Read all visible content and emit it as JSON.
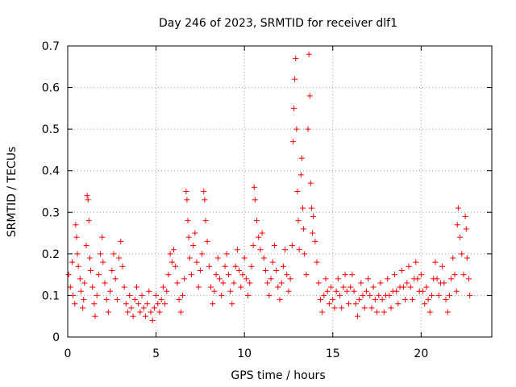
{
  "chart_data": {
    "type": "scatter",
    "title": "Day 246 of 2023, SRMTID for receiver dlf1",
    "xlabel": "GPS time / hours",
    "ylabel": "SRMTID / TECUs",
    "xlim": [
      0,
      24
    ],
    "ylim": [
      0,
      0.7
    ],
    "xticks": [
      0,
      5,
      10,
      15,
      20
    ],
    "xtick_labels": [
      "0",
      "5",
      "10",
      "15",
      "20"
    ],
    "yticks": [
      0,
      0.1,
      0.2,
      0.3,
      0.4,
      0.5,
      0.6,
      0.7
    ],
    "ytick_labels": [
      "0",
      "0.1",
      "0.2",
      "0.3",
      "0.4",
      "0.5",
      "0.6",
      "0.7"
    ],
    "grid": true,
    "marker": "+",
    "color": "#ff0000",
    "series": [
      {
        "name": "SRMTID",
        "points": [
          [
            0.05,
            0.15
          ],
          [
            0.15,
            0.12
          ],
          [
            0.25,
            0.18
          ],
          [
            0.3,
            0.1
          ],
          [
            0.4,
            0.08
          ],
          [
            0.45,
            0.27
          ],
          [
            0.5,
            0.24
          ],
          [
            0.55,
            0.2
          ],
          [
            0.6,
            0.17
          ],
          [
            0.7,
            0.14
          ],
          [
            0.75,
            0.11
          ],
          [
            0.85,
            0.07
          ],
          [
            0.9,
            0.09
          ],
          [
            0.95,
            0.13
          ],
          [
            1.05,
            0.22
          ],
          [
            1.1,
            0.34
          ],
          [
            1.15,
            0.33
          ],
          [
            1.2,
            0.28
          ],
          [
            1.25,
            0.19
          ],
          [
            1.3,
            0.16
          ],
          [
            1.4,
            0.12
          ],
          [
            1.5,
            0.08
          ],
          [
            1.55,
            0.05
          ],
          [
            1.65,
            0.1
          ],
          [
            1.75,
            0.15
          ],
          [
            1.85,
            0.2
          ],
          [
            1.95,
            0.24
          ],
          [
            2.0,
            0.18
          ],
          [
            2.1,
            0.13
          ],
          [
            2.2,
            0.09
          ],
          [
            2.3,
            0.06
          ],
          [
            2.4,
            0.11
          ],
          [
            2.5,
            0.16
          ],
          [
            2.6,
            0.2
          ],
          [
            2.7,
            0.14
          ],
          [
            2.8,
            0.09
          ],
          [
            2.9,
            0.19
          ],
          [
            3.0,
            0.23
          ],
          [
            3.1,
            0.17
          ],
          [
            3.2,
            0.12
          ],
          [
            3.3,
            0.08
          ],
          [
            3.4,
            0.06
          ],
          [
            3.5,
            0.1
          ],
          [
            3.6,
            0.07
          ],
          [
            3.7,
            0.05
          ],
          [
            3.8,
            0.09
          ],
          [
            3.9,
            0.12
          ],
          [
            4.0,
            0.08
          ],
          [
            4.1,
            0.06
          ],
          [
            4.2,
            0.1
          ],
          [
            4.3,
            0.07
          ],
          [
            4.4,
            0.05
          ],
          [
            4.5,
            0.08
          ],
          [
            4.6,
            0.11
          ],
          [
            4.7,
            0.06
          ],
          [
            4.8,
            0.04
          ],
          [
            4.9,
            0.07
          ],
          [
            5.0,
            0.1
          ],
          [
            5.1,
            0.08
          ],
          [
            5.2,
            0.06
          ],
          [
            5.3,
            0.09
          ],
          [
            5.4,
            0.12
          ],
          [
            5.5,
            0.08
          ],
          [
            5.6,
            0.11
          ],
          [
            5.7,
            0.15
          ],
          [
            5.8,
            0.2
          ],
          [
            5.9,
            0.18
          ],
          [
            6.0,
            0.21
          ],
          [
            6.1,
            0.17
          ],
          [
            6.2,
            0.13
          ],
          [
            6.3,
            0.09
          ],
          [
            6.4,
            0.06
          ],
          [
            6.5,
            0.1
          ],
          [
            6.6,
            0.14
          ],
          [
            6.7,
            0.35
          ],
          [
            6.75,
            0.33
          ],
          [
            6.8,
            0.28
          ],
          [
            6.85,
            0.24
          ],
          [
            6.9,
            0.19
          ],
          [
            7.0,
            0.15
          ],
          [
            7.1,
            0.22
          ],
          [
            7.2,
            0.25
          ],
          [
            7.3,
            0.18
          ],
          [
            7.4,
            0.12
          ],
          [
            7.5,
            0.16
          ],
          [
            7.6,
            0.2
          ],
          [
            7.7,
            0.35
          ],
          [
            7.75,
            0.33
          ],
          [
            7.8,
            0.28
          ],
          [
            7.9,
            0.23
          ],
          [
            8.0,
            0.17
          ],
          [
            8.1,
            0.12
          ],
          [
            8.2,
            0.08
          ],
          [
            8.3,
            0.11
          ],
          [
            8.4,
            0.15
          ],
          [
            8.5,
            0.19
          ],
          [
            8.6,
            0.14
          ],
          [
            8.7,
            0.1
          ],
          [
            8.8,
            0.13
          ],
          [
            8.9,
            0.17
          ],
          [
            9.0,
            0.2
          ],
          [
            9.1,
            0.15
          ],
          [
            9.2,
            0.11
          ],
          [
            9.3,
            0.08
          ],
          [
            9.4,
            0.13
          ],
          [
            9.5,
            0.17
          ],
          [
            9.6,
            0.21
          ],
          [
            9.7,
            0.16
          ],
          [
            9.8,
            0.12
          ],
          [
            9.9,
            0.15
          ],
          [
            10.0,
            0.19
          ],
          [
            10.1,
            0.14
          ],
          [
            10.2,
            0.1
          ],
          [
            10.3,
            0.13
          ],
          [
            10.4,
            0.17
          ],
          [
            10.5,
            0.22
          ],
          [
            10.55,
            0.36
          ],
          [
            10.6,
            0.33
          ],
          [
            10.7,
            0.28
          ],
          [
            10.8,
            0.24
          ],
          [
            10.9,
            0.21
          ],
          [
            11.0,
            0.25
          ],
          [
            11.1,
            0.19
          ],
          [
            11.2,
            0.16
          ],
          [
            11.3,
            0.13
          ],
          [
            11.4,
            0.1
          ],
          [
            11.5,
            0.14
          ],
          [
            11.6,
            0.18
          ],
          [
            11.7,
            0.22
          ],
          [
            11.8,
            0.16
          ],
          [
            11.9,
            0.12
          ],
          [
            12.0,
            0.09
          ],
          [
            12.1,
            0.13
          ],
          [
            12.2,
            0.17
          ],
          [
            12.3,
            0.21
          ],
          [
            12.4,
            0.15
          ],
          [
            12.5,
            0.11
          ],
          [
            12.6,
            0.14
          ],
          [
            12.7,
            0.22
          ],
          [
            12.75,
            0.47
          ],
          [
            12.8,
            0.55
          ],
          [
            12.85,
            0.62
          ],
          [
            12.9,
            0.67
          ],
          [
            12.95,
            0.5
          ],
          [
            13.0,
            0.35
          ],
          [
            13.05,
            0.28
          ],
          [
            13.1,
            0.21
          ],
          [
            13.2,
            0.39
          ],
          [
            13.25,
            0.43
          ],
          [
            13.3,
            0.31
          ],
          [
            13.35,
            0.26
          ],
          [
            13.4,
            0.2
          ],
          [
            13.5,
            0.15
          ],
          [
            13.6,
            0.5
          ],
          [
            13.65,
            0.68
          ],
          [
            13.7,
            0.58
          ],
          [
            13.75,
            0.37
          ],
          [
            13.8,
            0.31
          ],
          [
            13.85,
            0.25
          ],
          [
            13.9,
            0.29
          ],
          [
            14.0,
            0.23
          ],
          [
            14.1,
            0.18
          ],
          [
            14.2,
            0.13
          ],
          [
            14.3,
            0.09
          ],
          [
            14.4,
            0.06
          ],
          [
            14.5,
            0.1
          ],
          [
            14.6,
            0.14
          ],
          [
            14.7,
            0.11
          ],
          [
            14.8,
            0.08
          ],
          [
            14.9,
            0.12
          ],
          [
            15.0,
            0.09
          ],
          [
            15.1,
            0.07
          ],
          [
            15.2,
            0.11
          ],
          [
            15.3,
            0.14
          ],
          [
            15.4,
            0.1
          ],
          [
            15.5,
            0.07
          ],
          [
            15.6,
            0.12
          ],
          [
            15.7,
            0.15
          ],
          [
            15.8,
            0.11
          ],
          [
            15.9,
            0.08
          ],
          [
            16.0,
            0.12
          ],
          [
            16.1,
            0.15
          ],
          [
            16.2,
            0.11
          ],
          [
            16.3,
            0.08
          ],
          [
            16.4,
            0.05
          ],
          [
            16.5,
            0.09
          ],
          [
            16.6,
            0.13
          ],
          [
            16.7,
            0.1
          ],
          [
            16.8,
            0.07
          ],
          [
            16.9,
            0.11
          ],
          [
            17.0,
            0.14
          ],
          [
            17.1,
            0.1
          ],
          [
            17.2,
            0.07
          ],
          [
            17.3,
            0.12
          ],
          [
            17.4,
            0.09
          ],
          [
            17.5,
            0.06
          ],
          [
            17.6,
            0.1
          ],
          [
            17.7,
            0.13
          ],
          [
            17.8,
            0.09
          ],
          [
            17.9,
            0.06
          ],
          [
            18.0,
            0.1
          ],
          [
            18.1,
            0.14
          ],
          [
            18.2,
            0.1
          ],
          [
            18.3,
            0.07
          ],
          [
            18.4,
            0.11
          ],
          [
            18.5,
            0.15
          ],
          [
            18.6,
            0.11
          ],
          [
            18.7,
            0.08
          ],
          [
            18.8,
            0.12
          ],
          [
            18.9,
            0.16
          ],
          [
            19.0,
            0.12
          ],
          [
            19.1,
            0.09
          ],
          [
            19.2,
            0.13
          ],
          [
            19.3,
            0.17
          ],
          [
            19.4,
            0.12
          ],
          [
            19.5,
            0.09
          ],
          [
            19.6,
            0.14
          ],
          [
            19.7,
            0.18
          ],
          [
            19.8,
            0.14
          ],
          [
            19.9,
            0.11
          ],
          [
            20.0,
            0.15
          ],
          [
            20.1,
            0.11
          ],
          [
            20.2,
            0.08
          ],
          [
            20.3,
            0.12
          ],
          [
            20.4,
            0.09
          ],
          [
            20.5,
            0.06
          ],
          [
            20.6,
            0.1
          ],
          [
            20.7,
            0.14
          ],
          [
            20.8,
            0.18
          ],
          [
            20.9,
            0.14
          ],
          [
            21.0,
            0.1
          ],
          [
            21.1,
            0.13
          ],
          [
            21.2,
            0.17
          ],
          [
            21.3,
            0.13
          ],
          [
            21.4,
            0.09
          ],
          [
            21.5,
            0.06
          ],
          [
            21.6,
            0.1
          ],
          [
            21.7,
            0.14
          ],
          [
            21.8,
            0.19
          ],
          [
            21.9,
            0.15
          ],
          [
            22.0,
            0.11
          ],
          [
            22.05,
            0.27
          ],
          [
            22.1,
            0.31
          ],
          [
            22.2,
            0.24
          ],
          [
            22.3,
            0.2
          ],
          [
            22.4,
            0.15
          ],
          [
            22.5,
            0.29
          ],
          [
            22.55,
            0.26
          ],
          [
            22.6,
            0.19
          ],
          [
            22.7,
            0.14
          ],
          [
            22.75,
            0.1
          ]
        ]
      }
    ]
  }
}
